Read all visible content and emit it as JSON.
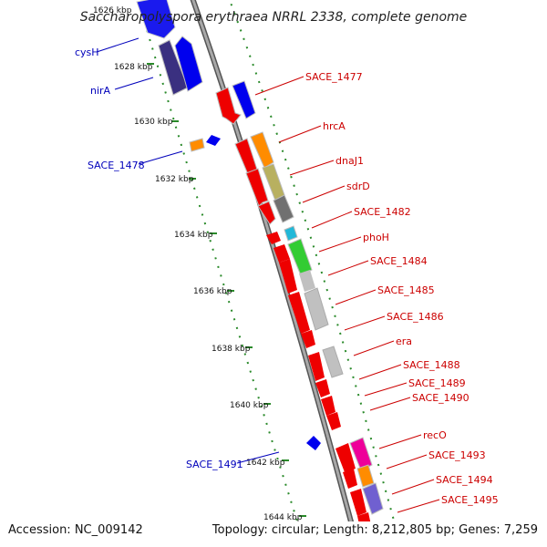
{
  "title": "Saccharopolyspora erythraea NRRL 2338, complete genome",
  "footer": {
    "accession": "Accession: NC_009142",
    "topology": "Topology: circular; Length: 8,212,805 bp; Genes: 7,259"
  },
  "ticks": [
    "1626 kbp",
    "1628 kbp",
    "1630 kbp",
    "1632 kbp",
    "1634 kbp",
    "1636 kbp",
    "1638 kbp",
    "1640 kbp",
    "1642 kbp",
    "1644 kbp"
  ],
  "left_labels": [
    "cysH",
    "nirA",
    "SACE_1478",
    "SACE_1491"
  ],
  "right_labels": [
    "SACE_1477",
    "hrcA",
    "dnaJ1",
    "sdrD",
    "SACE_1482",
    "phoH",
    "SACE_1484",
    "SACE_1485",
    "SACE_1486",
    "era",
    "SACE_1488",
    "SACE_1489",
    "SACE_1490",
    "recO",
    "SACE_1493",
    "SACE_1494",
    "SACE_1495"
  ],
  "colors": {
    "red": "#ee0000",
    "blue": "#0000ee",
    "navy": "#3a3080",
    "orange": "#ff8c00",
    "olive": "#b8b060",
    "gray": "#c0c0c0",
    "darkgray": "#707070",
    "cyan": "#22b8d8",
    "green": "#33cc33",
    "magenta": "#ee0099",
    "purple": "#7060d0",
    "tick": "#2a8a2a",
    "backbone": "#8a8a8a"
  }
}
